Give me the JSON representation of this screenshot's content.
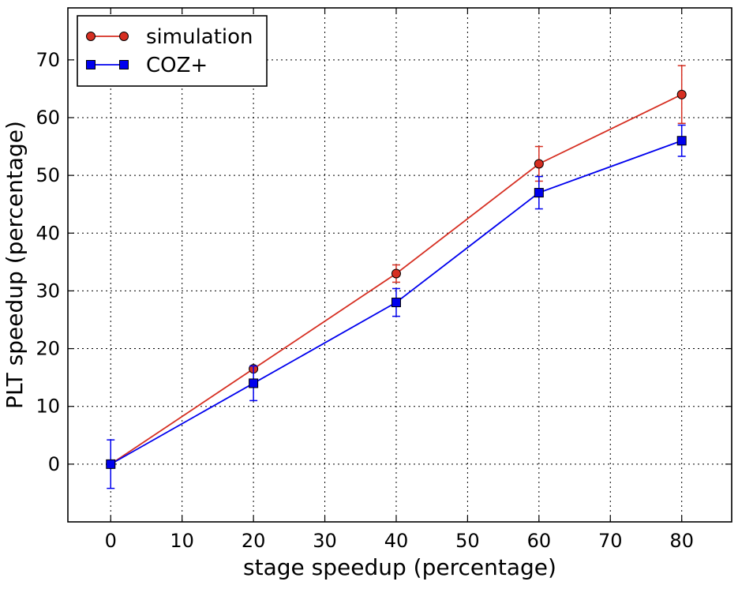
{
  "chart_data": {
    "type": "line",
    "xlabel": "stage speedup (percentage)",
    "ylabel": "PLT speedup (percentage)",
    "xlim": [
      -6,
      87
    ],
    "ylim": [
      -10,
      79
    ],
    "xticks": [
      0,
      10,
      20,
      30,
      40,
      50,
      60,
      70,
      80
    ],
    "yticks": [
      0,
      10,
      20,
      30,
      40,
      50,
      60,
      70
    ],
    "grid": true,
    "legend_position": "top-left",
    "series": [
      {
        "name": "simulation",
        "color": "#d62f22",
        "marker": "circle",
        "x": [
          0,
          20,
          40,
          60,
          80
        ],
        "y": [
          0,
          16.5,
          33,
          52,
          64
        ],
        "err_low": [
          0,
          0,
          1.5,
          3,
          5
        ],
        "err_high": [
          0,
          0,
          1.5,
          3,
          5
        ]
      },
      {
        "name": "COZ+",
        "color": "#0000ee",
        "marker": "square",
        "x": [
          0,
          20,
          40,
          60,
          80
        ],
        "y": [
          0,
          14,
          28,
          47,
          56
        ],
        "err_low": [
          4.2,
          3,
          2.4,
          2.8,
          2.7
        ],
        "err_high": [
          4.2,
          3,
          2.4,
          2.8,
          2.7
        ]
      }
    ]
  }
}
